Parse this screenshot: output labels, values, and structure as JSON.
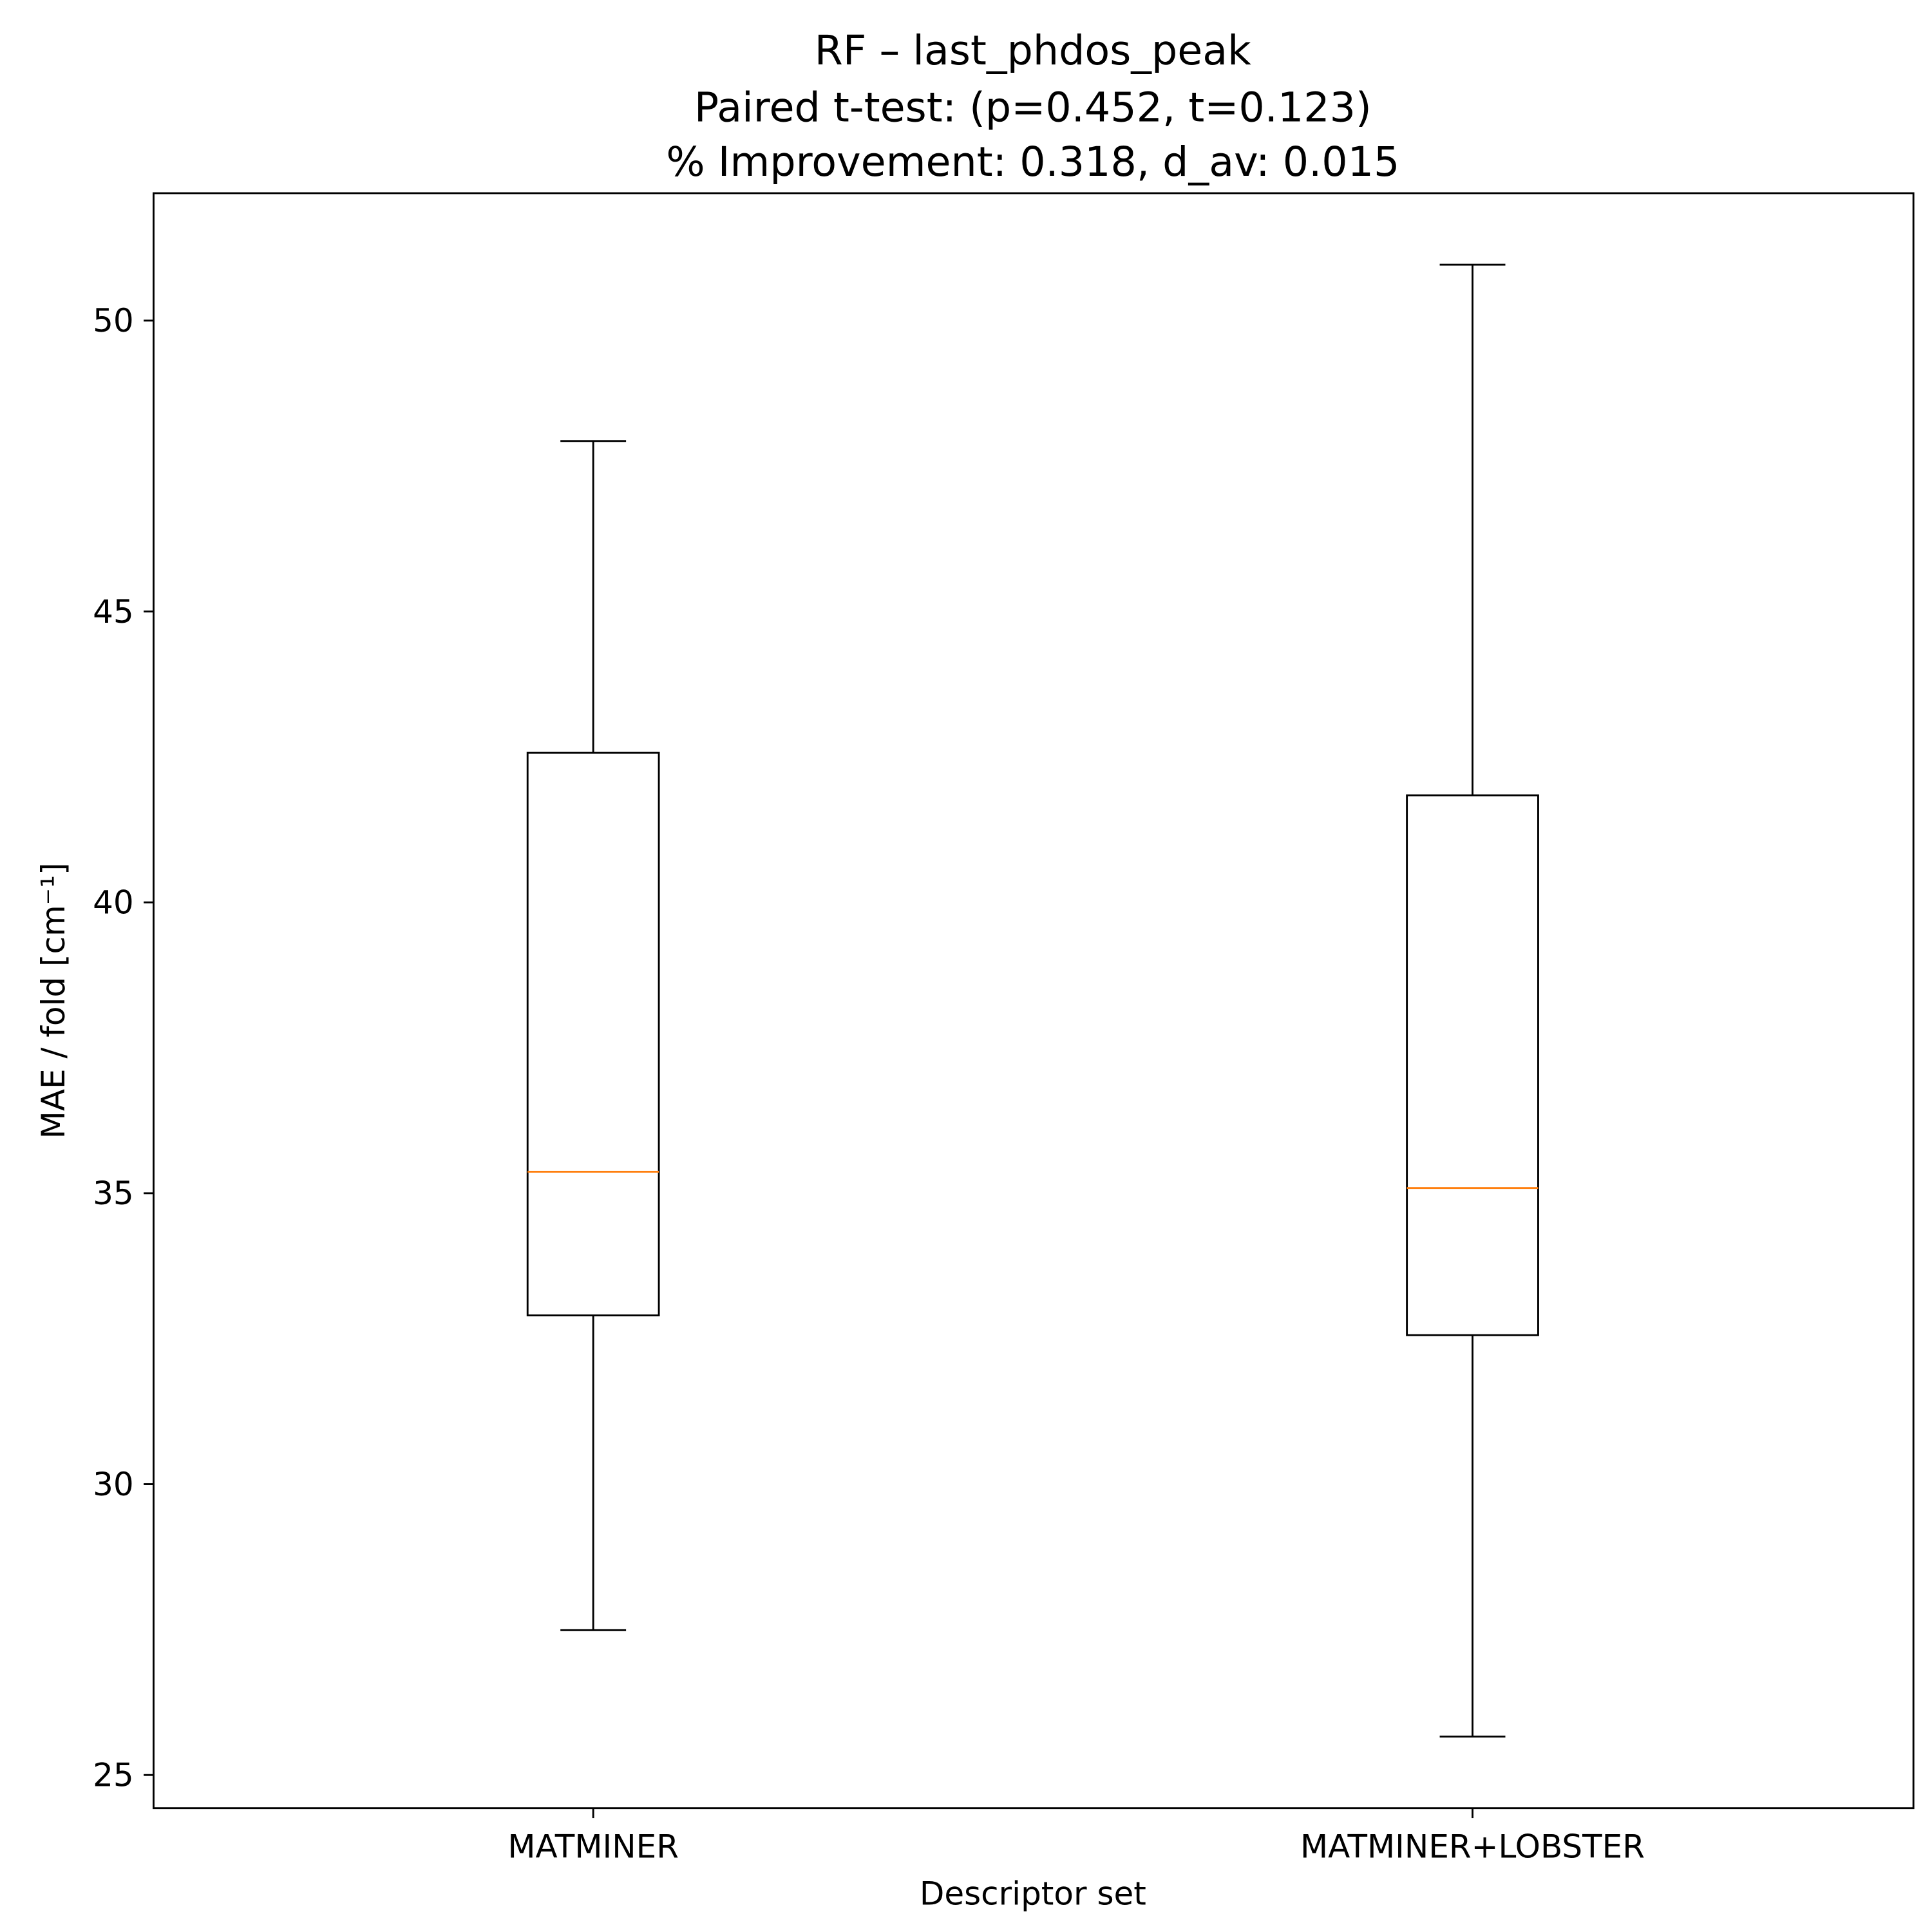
{
  "chart_data": {
    "type": "box",
    "title_lines": [
      "RF – last_phdos_peak",
      "Paired t-test: (p=0.452, t=0.123)",
      "% Improvement: 0.318, d_av: 0.015"
    ],
    "xlabel": "Descriptor set",
    "ylabel": "MAE / fold [cm⁻¹]",
    "ylim": [
      24.43,
      52.19
    ],
    "yticks": [
      25,
      30,
      35,
      40,
      45,
      50
    ],
    "ytick_labels": [
      "25",
      "30",
      "35",
      "40",
      "45",
      "50"
    ],
    "categories": [
      "MATMINER",
      "MATMINER+LOBSTER"
    ],
    "boxes": [
      {
        "name": "MATMINER",
        "whisker_low": 27.49,
        "q1": 32.9,
        "median": 35.37,
        "q3": 42.57,
        "whisker_high": 47.93
      },
      {
        "name": "MATMINER+LOBSTER",
        "whisker_low": 25.66,
        "q1": 32.56,
        "median": 35.09,
        "q3": 41.84,
        "whisker_high": 50.96
      }
    ],
    "colors": {
      "box": "#000000",
      "median": "#ff7f0e"
    },
    "grid": false
  }
}
